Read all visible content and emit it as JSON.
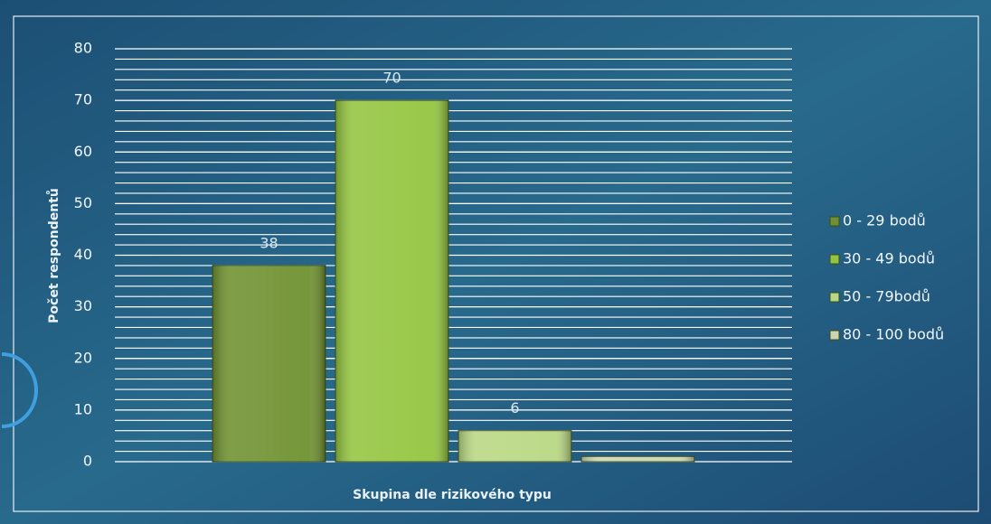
{
  "chart_data": {
    "type": "bar",
    "x_label": "Skupina dle rizikového typu",
    "y_label": "Počet respondentů",
    "series": [
      {
        "name": "0 - 29 bodů",
        "color": "#6f9130",
        "values": [
          38
        ]
      },
      {
        "name": "30 - 49 bodů",
        "color": "#94c540",
        "values": [
          70
        ]
      },
      {
        "name": "50 - 79bodů",
        "color": "#b9d883",
        "values": [
          6
        ]
      },
      {
        "name": "80 - 100 bodů",
        "color": "#cdd5b0",
        "values": [
          1
        ],
        "show_value": false
      }
    ],
    "ylim": [
      0,
      80
    ],
    "yticks": [
      0,
      10,
      20,
      30,
      40,
      50,
      60,
      70,
      80
    ],
    "grid": true,
    "minor_grid_step": 2,
    "legend": "right"
  }
}
